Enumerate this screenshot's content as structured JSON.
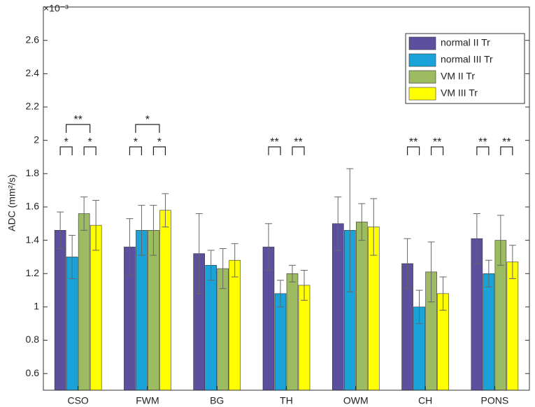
{
  "chart_data": {
    "type": "bar",
    "ylabel": "ADC (mm²/s)",
    "y_exponent": "×10⁻³",
    "categories": [
      "CSO",
      "FWM",
      "BG",
      "TH",
      "OWM",
      "CH",
      "PONS"
    ],
    "series": [
      {
        "name": "normal II Tr",
        "color": "#5b4f9e",
        "values": [
          1.46,
          1.36,
          1.32,
          1.36,
          1.5,
          1.26,
          1.41
        ],
        "errors": [
          0.11,
          0.17,
          0.24,
          0.14,
          0.16,
          0.15,
          0.15
        ]
      },
      {
        "name": "normal III Tr",
        "color": "#1aa3d9",
        "values": [
          1.3,
          1.46,
          1.25,
          1.08,
          1.46,
          1.0,
          1.2
        ],
        "errors": [
          0.13,
          0.15,
          0.09,
          0.08,
          0.37,
          0.1,
          0.08
        ]
      },
      {
        "name": "VM II Tr",
        "color": "#9dbb61",
        "values": [
          1.56,
          1.46,
          1.23,
          1.2,
          1.51,
          1.21,
          1.4
        ],
        "errors": [
          0.1,
          0.15,
          0.12,
          0.05,
          0.11,
          0.18,
          0.15
        ]
      },
      {
        "name": "VM III Tr",
        "color": "#ffff00",
        "values": [
          1.49,
          1.58,
          1.28,
          1.13,
          1.48,
          1.08,
          1.27
        ],
        "errors": [
          0.15,
          0.1,
          0.1,
          0.09,
          0.17,
          0.1,
          0.1
        ]
      }
    ],
    "annotations": [
      {
        "text": "**",
        "category": 0,
        "left": [
          0,
          1
        ],
        "right": [
          2,
          3
        ]
      },
      {
        "text": "*",
        "category": 0,
        "left": [
          0
        ],
        "right": [
          1
        ]
      },
      {
        "text": "*",
        "category": 0,
        "left": [
          2
        ],
        "right": [
          3
        ]
      },
      {
        "text": "*",
        "category": 1,
        "left": [
          0,
          1
        ],
        "right": [
          2,
          3
        ]
      },
      {
        "text": "*",
        "category": 1,
        "left": [
          0
        ],
        "right": [
          1
        ]
      },
      {
        "text": "*",
        "category": 1,
        "left": [
          2
        ],
        "right": [
          3
        ]
      },
      {
        "text": "**",
        "category": 3,
        "left": [
          0
        ],
        "right": [
          1
        ]
      },
      {
        "text": "**",
        "category": 3,
        "left": [
          2
        ],
        "right": [
          3
        ]
      },
      {
        "text": "**",
        "category": 5,
        "left": [
          0
        ],
        "right": [
          1
        ]
      },
      {
        "text": "**",
        "category": 5,
        "left": [
          2
        ],
        "right": [
          3
        ]
      },
      {
        "text": "**",
        "category": 6,
        "left": [
          0
        ],
        "right": [
          1
        ]
      },
      {
        "text": "**",
        "category": 6,
        "left": [
          2
        ],
        "right": [
          3
        ]
      }
    ],
    "ylim": [
      0.5,
      2.75
    ],
    "yticks": [
      0.6,
      0.8,
      1,
      1.2,
      1.4,
      1.6,
      1.8,
      2,
      2.2,
      2.4,
      2.6
    ],
    "legend": "upper right"
  }
}
